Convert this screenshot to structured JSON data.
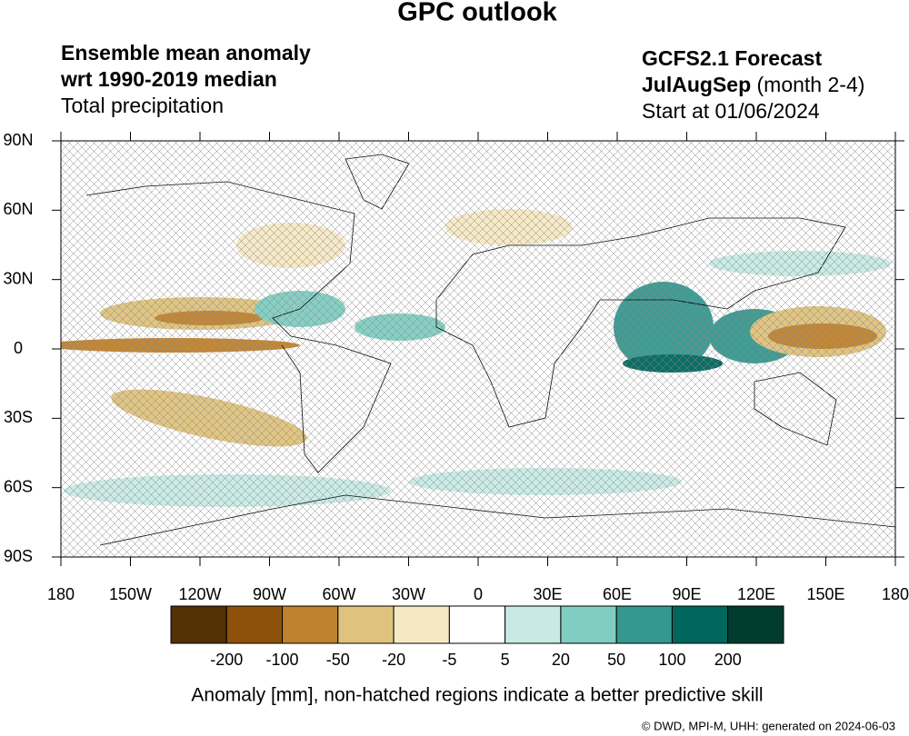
{
  "header": {
    "title": "GPC outlook",
    "left": [
      "Ensemble mean anomaly",
      "wrt 1990-2019 median",
      "Total precipitation"
    ],
    "right": {
      "model": "GCFS2.1 Forecast",
      "season": "JulAugSep",
      "lead": "(month 2-4)",
      "start": "Start at 01/06/2024"
    }
  },
  "map": {
    "lon_ticks": [
      {
        "value": -180,
        "label": "180"
      },
      {
        "value": -150,
        "label": "150W"
      },
      {
        "value": -120,
        "label": "120W"
      },
      {
        "value": -90,
        "label": "90W"
      },
      {
        "value": -60,
        "label": "60W"
      },
      {
        "value": -30,
        "label": "30W"
      },
      0,
      {
        "value": 30,
        "label": "30E"
      },
      {
        "value": 60,
        "label": "60E"
      },
      {
        "value": 90,
        "label": "90E"
      },
      {
        "value": 120,
        "label": "120E"
      },
      {
        "value": 150,
        "label": "150E"
      },
      {
        "value": 180,
        "label": "180"
      }
    ],
    "lat_ticks": [
      {
        "value": 90,
        "label": "90N"
      },
      {
        "value": 60,
        "label": "60N"
      },
      {
        "value": 30,
        "label": "30N"
      },
      0,
      {
        "value": -30,
        "label": "30S"
      },
      {
        "value": -60,
        "label": "60S"
      },
      {
        "value": -90,
        "label": "90S"
      }
    ],
    "lonlim": [
      -180,
      180
    ],
    "latlim": [
      -90,
      90
    ]
  },
  "colorbar": {
    "colors": [
      "#543005",
      "#8c510a",
      "#bf812d",
      "#dfc27d",
      "#f6e8c3",
      "#ffffff",
      "#c7eae5",
      "#80cdc1",
      "#35978f",
      "#01665e",
      "#003c30"
    ],
    "levels": [
      -200,
      -100,
      -50,
      -20,
      -5,
      5,
      20,
      50,
      100,
      200
    ],
    "label": "Anomaly [mm], non-hatched regions indicate a better predictive skill"
  },
  "footer": "©  DWD, MPI-M, UHH: generated on 2024-06-03"
}
